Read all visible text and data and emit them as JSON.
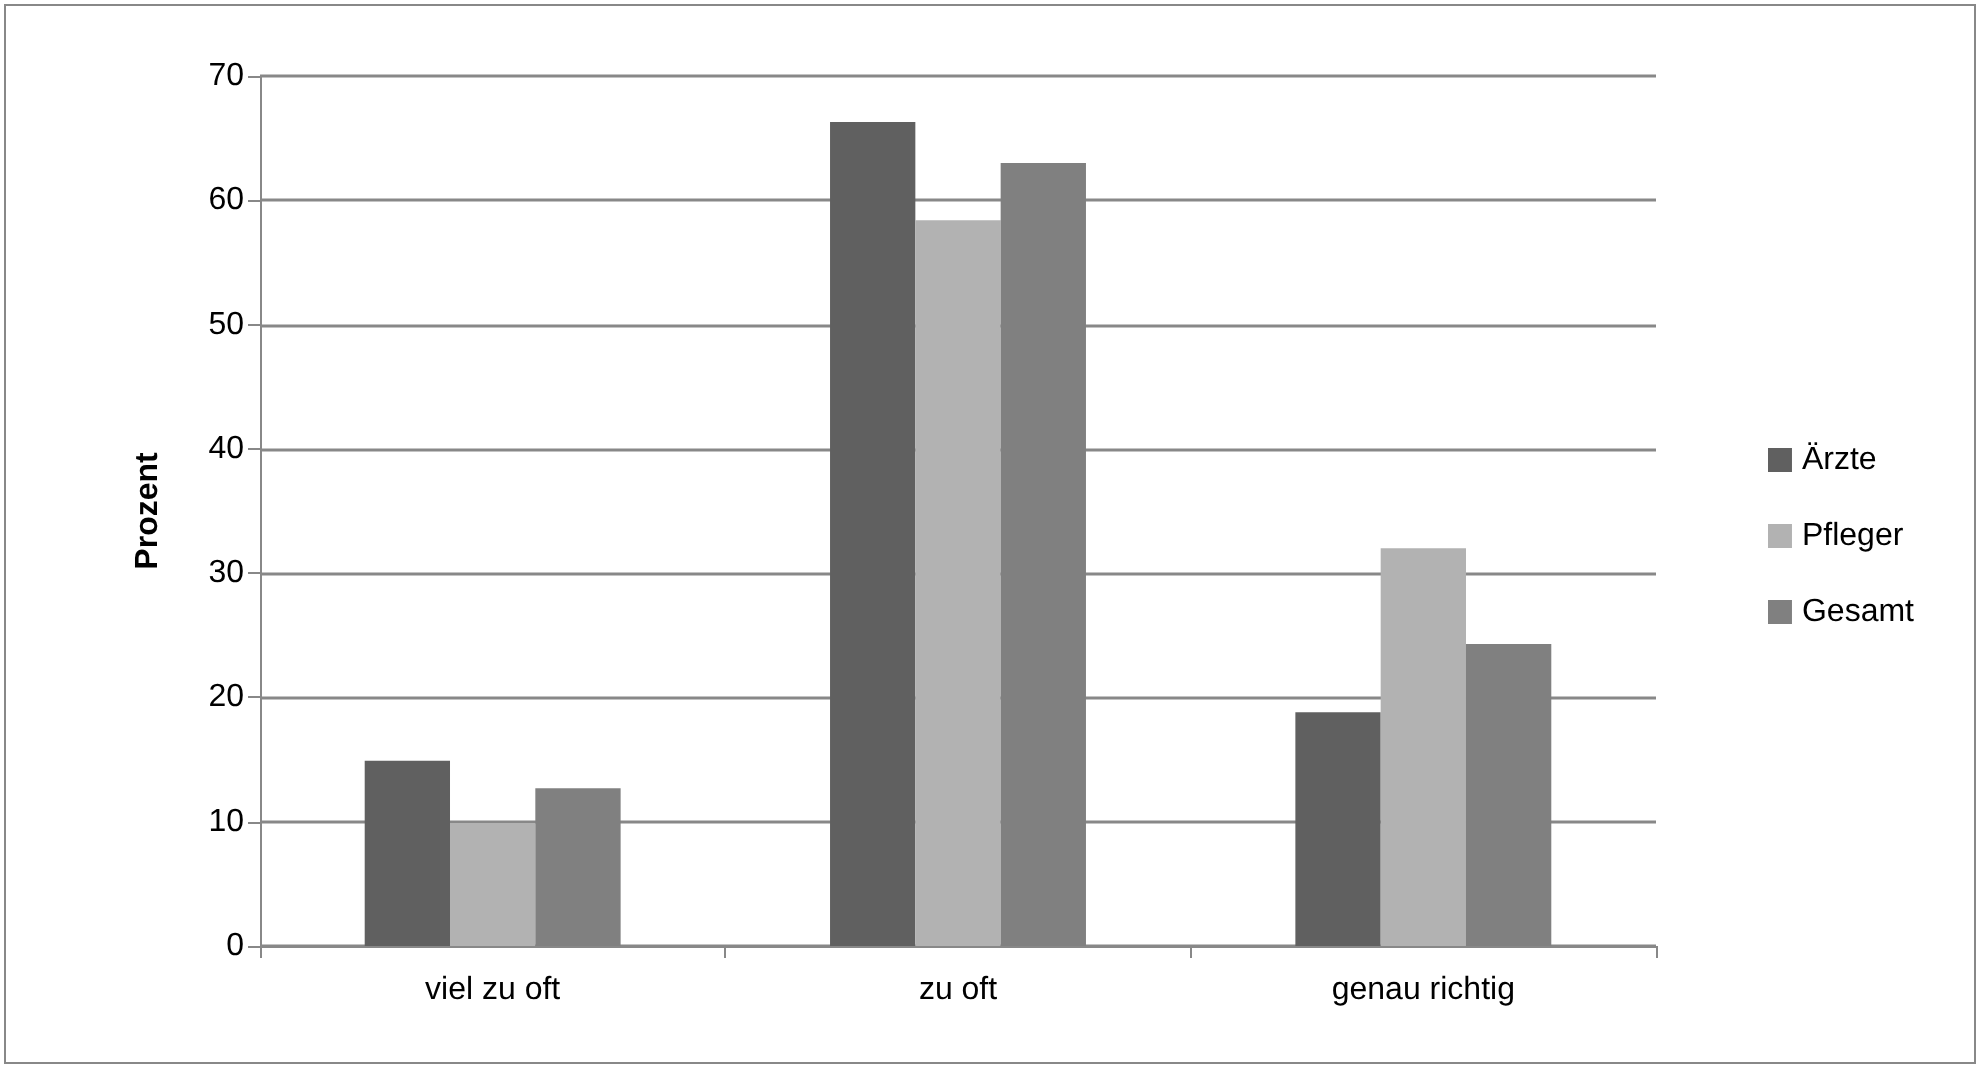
{
  "chart_data": {
    "type": "bar",
    "ylabel": "Prozent",
    "categories": [
      "viel zu oft",
      "zu oft",
      "genau richtig"
    ],
    "series": [
      {
        "name": "Ärzte",
        "color": "#606060",
        "values": [
          14.9,
          66.3,
          18.8
        ]
      },
      {
        "name": "Pfleger",
        "color": "#b2b2b2",
        "values": [
          9.9,
          58.4,
          32.0
        ]
      },
      {
        "name": "Gesamt",
        "color": "#808080",
        "values": [
          12.7,
          63.0,
          24.3
        ]
      }
    ],
    "ylim": [
      0,
      70
    ],
    "yticks": [
      0,
      10,
      20,
      30,
      40,
      50,
      60,
      70
    ],
    "grid": "y",
    "legend": "right"
  }
}
